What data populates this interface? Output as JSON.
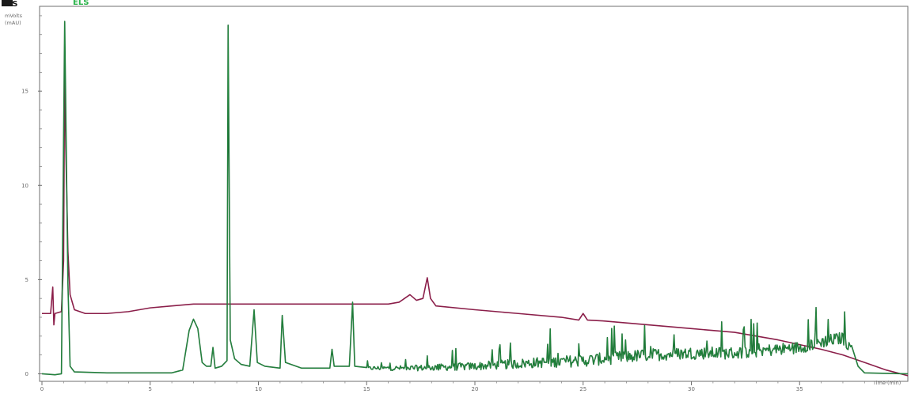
{
  "legend": [
    {
      "label": "ELS",
      "color": "#1a1a1a"
    },
    {
      "label": "ELS",
      "color": "#2bb34a"
    }
  ],
  "chart_data": {
    "type": "line",
    "y_unit_lines": [
      "mVolts",
      "(mAU)"
    ],
    "x_unit_label": "Time (min)",
    "xlim": [
      0,
      40
    ],
    "ylim": [
      -0.4,
      19.5
    ],
    "x_ticks": [
      {
        "v": 0,
        "label": "0"
      },
      {
        "v": 5,
        "label": "5"
      },
      {
        "v": 10,
        "label": "10"
      },
      {
        "v": 15,
        "label": "15"
      },
      {
        "v": 20,
        "label": "20"
      },
      {
        "v": 25,
        "label": "25"
      },
      {
        "v": 30,
        "label": "30"
      },
      {
        "v": 35,
        "label": "35"
      }
    ],
    "y_ticks": [
      {
        "v": 0,
        "label": "0"
      },
      {
        "v": 5,
        "label": "5"
      },
      {
        "v": 10,
        "label": "10"
      },
      {
        "v": 15,
        "label": "15"
      }
    ],
    "grid": false,
    "legend_placement": "top-left",
    "series": [
      {
        "color": "#8b1f4a",
        "baseline": [
          [
            0,
            3.2
          ],
          [
            0.4,
            3.2
          ],
          [
            0.5,
            4.6
          ],
          [
            0.55,
            2.6
          ],
          [
            0.6,
            3.2
          ],
          [
            0.9,
            3.3
          ],
          [
            1.0,
            6.0
          ],
          [
            1.05,
            16.8
          ],
          [
            1.1,
            12.0
          ],
          [
            1.2,
            6.5
          ],
          [
            1.3,
            4.2
          ],
          [
            1.5,
            3.4
          ],
          [
            2,
            3.2
          ],
          [
            3,
            3.2
          ],
          [
            4,
            3.3
          ],
          [
            5,
            3.5
          ],
          [
            6,
            3.6
          ],
          [
            7,
            3.7
          ],
          [
            8,
            3.7
          ],
          [
            10,
            3.7
          ],
          [
            12,
            3.7
          ],
          [
            14,
            3.7
          ],
          [
            15,
            3.7
          ],
          [
            16,
            3.7
          ],
          [
            16.5,
            3.8
          ],
          [
            17,
            4.2
          ],
          [
            17.3,
            3.9
          ],
          [
            17.6,
            4.0
          ],
          [
            17.8,
            5.1
          ],
          [
            17.95,
            4.0
          ],
          [
            18.2,
            3.6
          ],
          [
            20,
            3.4
          ],
          [
            22,
            3.2
          ],
          [
            24,
            3.0
          ],
          [
            24.8,
            2.85
          ],
          [
            25,
            3.2
          ],
          [
            25.2,
            2.85
          ],
          [
            26,
            2.8
          ],
          [
            28,
            2.6
          ],
          [
            30,
            2.4
          ],
          [
            32,
            2.2
          ],
          [
            34,
            1.8
          ],
          [
            36,
            1.3
          ],
          [
            37,
            1.0
          ],
          [
            38,
            0.6
          ],
          [
            39,
            0.2
          ],
          [
            40,
            -0.1
          ]
        ]
      },
      {
        "color": "#1e6b36",
        "baseline": [
          [
            0,
            0
          ],
          [
            0.6,
            -0.05
          ],
          [
            0.9,
            0
          ],
          [
            1.05,
            18.7
          ],
          [
            1.2,
            4.8
          ],
          [
            1.3,
            0.4
          ],
          [
            1.5,
            0.1
          ],
          [
            3,
            0.05
          ],
          [
            5,
            0.05
          ],
          [
            6,
            0.05
          ],
          [
            6.5,
            0.2
          ],
          [
            6.8,
            2.3
          ],
          [
            7.0,
            2.9
          ],
          [
            7.2,
            2.4
          ],
          [
            7.4,
            0.6
          ],
          [
            7.6,
            0.4
          ],
          [
            7.8,
            0.4
          ],
          [
            7.9,
            1.4
          ],
          [
            8.0,
            0.3
          ],
          [
            8.3,
            0.4
          ],
          [
            8.55,
            0.7
          ],
          [
            8.6,
            18.5
          ],
          [
            8.7,
            1.8
          ],
          [
            8.9,
            0.8
          ],
          [
            9.2,
            0.5
          ],
          [
            9.6,
            0.4
          ],
          [
            9.8,
            3.4
          ],
          [
            9.95,
            0.6
          ],
          [
            10.3,
            0.4
          ],
          [
            11,
            0.3
          ],
          [
            11.1,
            3.1
          ],
          [
            11.25,
            0.6
          ],
          [
            12,
            0.3
          ],
          [
            13.3,
            0.3
          ],
          [
            13.4,
            1.3
          ],
          [
            13.5,
            0.4
          ],
          [
            14.2,
            0.4
          ],
          [
            14.35,
            3.8
          ],
          [
            14.45,
            0.4
          ],
          [
            15,
            0.3
          ],
          [
            17,
            0.3
          ],
          [
            20,
            0.4
          ],
          [
            23,
            0.6
          ],
          [
            25,
            0.7
          ],
          [
            27,
            0.9
          ],
          [
            28,
            1.0
          ],
          [
            30,
            1.1
          ],
          [
            32,
            1.1
          ],
          [
            34,
            1.3
          ],
          [
            35,
            1.4
          ],
          [
            36,
            1.7
          ],
          [
            37,
            1.9
          ],
          [
            37.4,
            1.3
          ],
          [
            37.7,
            0.4
          ],
          [
            38,
            0.05
          ],
          [
            40,
            0
          ]
        ],
        "noise": {
          "from": 15,
          "to": 37.4,
          "density": 0.04,
          "amplitude": 1.1
        }
      }
    ]
  }
}
